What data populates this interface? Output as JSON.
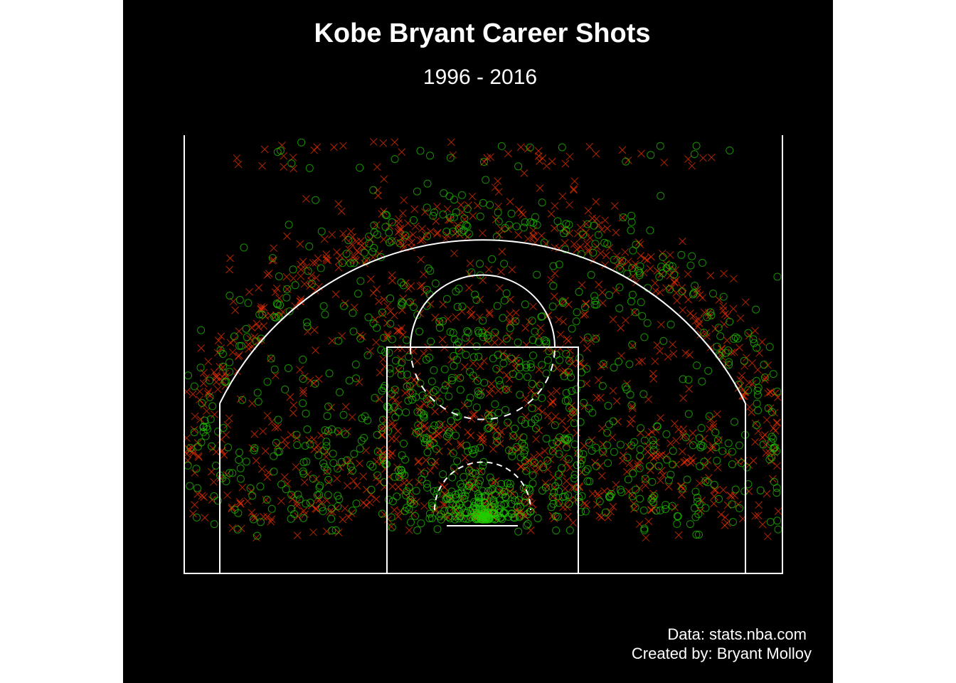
{
  "chart_data": {
    "type": "scatter",
    "title": "Kobe Bryant Career Shots",
    "subtitle": "1996 - 2016",
    "xlabel": "",
    "ylabel": "",
    "xlim": [
      -250,
      250
    ],
    "ylim": [
      -52,
      315
    ],
    "grid": false,
    "legend": "none",
    "background": "#000000",
    "line_color": "#ffffff",
    "series": [
      {
        "marker": "x",
        "color": "#ff3300",
        "outcome": "missed"
      },
      {
        "marker": "o",
        "color": "#22cc00",
        "outcome": "made"
      }
    ],
    "density_regions": [
      {
        "name": "restricted-area",
        "x": [
          -40,
          40
        ],
        "y": [
          -10,
          40
        ],
        "density": "very high",
        "dominant": "made"
      },
      {
        "name": "paint",
        "x": [
          -80,
          80
        ],
        "y": [
          -10,
          190
        ],
        "density": "high",
        "dominant": "made"
      },
      {
        "name": "midrange",
        "x": [
          -220,
          220
        ],
        "y": [
          0,
          240
        ],
        "density": "high",
        "dominant": "mixed"
      },
      {
        "name": "three-point-arc",
        "x": [
          -250,
          250
        ],
        "y": [
          200,
          310
        ],
        "density": "high",
        "dominant": "missed"
      }
    ],
    "caption": {
      "line1": "Data: stats.nba.com",
      "line2": "Created by: Bryant Molloy"
    }
  }
}
